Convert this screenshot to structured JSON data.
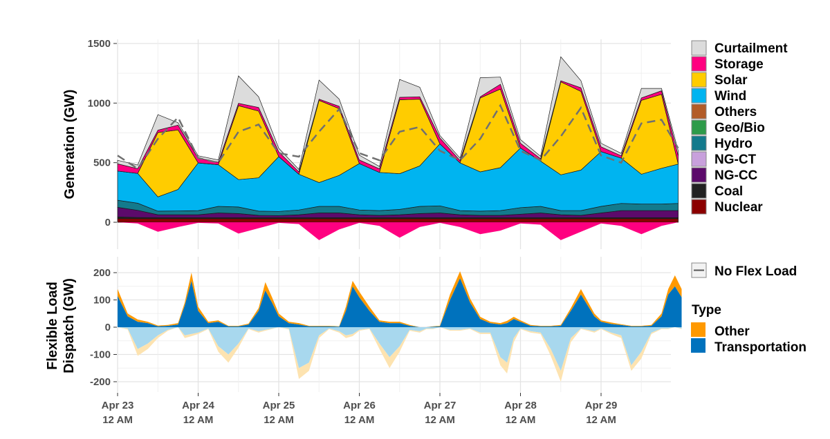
{
  "chart_data": [
    {
      "type": "area",
      "panel": "generation",
      "ylabel": "Generation (GW)",
      "ylim": [
        -150,
        1500
      ],
      "yticks": [
        "0",
        "500",
        "1000",
        "1500"
      ],
      "ytick_values": [
        0,
        500,
        1000,
        1500
      ],
      "x_unit": "hours since Apr 23 12 AM",
      "x": [
        0,
        6,
        12,
        18,
        24,
        30,
        36,
        42,
        48,
        54,
        60,
        66,
        72,
        78,
        84,
        90,
        96,
        102,
        108,
        114,
        120,
        126,
        132,
        138,
        144,
        150,
        156,
        162,
        167
      ],
      "series": [
        {
          "name": "Nuclear",
          "color": "#8b0000",
          "values": [
            30,
            30,
            30,
            30,
            30,
            30,
            30,
            30,
            30,
            30,
            30,
            30,
            30,
            30,
            30,
            30,
            30,
            30,
            30,
            30,
            30,
            30,
            30,
            30,
            30,
            30,
            30,
            30,
            30
          ]
        },
        {
          "name": "Coal",
          "color": "#222222",
          "values": [
            15,
            10,
            8,
            8,
            8,
            8,
            8,
            8,
            8,
            8,
            8,
            8,
            8,
            8,
            8,
            8,
            8,
            8,
            8,
            8,
            8,
            8,
            8,
            8,
            8,
            8,
            8,
            8,
            8
          ]
        },
        {
          "name": "NG-CC",
          "color": "#5c0a6b",
          "values": [
            80,
            60,
            25,
            25,
            25,
            40,
            35,
            20,
            18,
            25,
            40,
            40,
            25,
            20,
            25,
            35,
            40,
            25,
            20,
            20,
            30,
            40,
            25,
            20,
            40,
            60,
            60,
            60,
            60
          ]
        },
        {
          "name": "NG-CT",
          "color": "#c8a0dc",
          "values": [
            0,
            0,
            0,
            0,
            0,
            0,
            0,
            0,
            0,
            0,
            0,
            0,
            0,
            0,
            0,
            0,
            0,
            0,
            0,
            0,
            0,
            0,
            0,
            0,
            0,
            0,
            0,
            0,
            0
          ]
        },
        {
          "name": "Hydro",
          "color": "#137a8c",
          "values": [
            60,
            60,
            30,
            32,
            35,
            55,
            55,
            35,
            35,
            40,
            55,
            55,
            40,
            40,
            45,
            60,
            60,
            35,
            35,
            40,
            55,
            55,
            35,
            40,
            55,
            60,
            55,
            55,
            60
          ]
        },
        {
          "name": "Geo/Bio",
          "color": "#2e9b4a",
          "values": [
            0,
            0,
            0,
            0,
            0,
            0,
            0,
            0,
            0,
            0,
            0,
            0,
            0,
            0,
            0,
            0,
            0,
            0,
            0,
            0,
            0,
            0,
            0,
            0,
            0,
            0,
            0,
            0,
            0
          ]
        },
        {
          "name": "Others",
          "color": "#b35c28",
          "values": [
            0,
            0,
            0,
            0,
            0,
            0,
            0,
            0,
            0,
            0,
            0,
            0,
            0,
            0,
            0,
            0,
            0,
            0,
            0,
            0,
            0,
            0,
            0,
            0,
            0,
            0,
            0,
            0,
            0
          ]
        },
        {
          "name": "Wind",
          "color": "#00b4f0",
          "values": [
            245,
            250,
            120,
            180,
            400,
            350,
            230,
            280,
            460,
            300,
            200,
            260,
            390,
            320,
            300,
            340,
            520,
            400,
            330,
            360,
            500,
            380,
            300,
            340,
            460,
            380,
            250,
            300,
            330
          ]
        },
        {
          "name": "Solar",
          "color": "#ffcc00",
          "values": [
            0,
            0,
            540,
            500,
            0,
            0,
            620,
            560,
            0,
            0,
            690,
            560,
            0,
            0,
            620,
            560,
            0,
            0,
            620,
            660,
            0,
            0,
            780,
            660,
            0,
            0,
            620,
            620,
            0
          ]
        },
        {
          "name": "Storage",
          "color": "#ff0080",
          "values": [
            60,
            40,
            20,
            40,
            40,
            20,
            20,
            30,
            40,
            20,
            10,
            20,
            30,
            30,
            20,
            20,
            50,
            20,
            10,
            40,
            40,
            20,
            10,
            30,
            40,
            20,
            20,
            30,
            70
          ]
        },
        {
          "name": "Curtailment",
          "color": "#dcdcdc",
          "values": [
            30,
            30,
            130,
            20,
            20,
            20,
            230,
            90,
            30,
            20,
            160,
            60,
            40,
            20,
            150,
            80,
            20,
            20,
            160,
            60,
            30,
            20,
            200,
            60,
            30,
            20,
            80,
            20,
            40
          ]
        }
      ],
      "storage_charging": {
        "name": "Storage",
        "values": [
          0,
          -10,
          -80,
          -40,
          -5,
          -10,
          -95,
          -50,
          -5,
          -15,
          -150,
          -60,
          -5,
          -30,
          -130,
          -40,
          -5,
          -40,
          -100,
          -70,
          -10,
          -20,
          -150,
          -80,
          -10,
          -30,
          -100,
          -30,
          0
        ]
      },
      "no_flex_load": {
        "name": "No Flex Load",
        "values": [
          560,
          450,
          700,
          880,
          540,
          500,
          760,
          820,
          580,
          550,
          760,
          950,
          580,
          520,
          760,
          800,
          600,
          520,
          700,
          980,
          600,
          520,
          720,
          960,
          560,
          500,
          830,
          860,
          620
        ]
      }
    },
    {
      "type": "area",
      "panel": "flexible-load",
      "ylabel_lines": [
        "Flexible Load",
        "Dispatch (GW)"
      ],
      "ylim": [
        -250,
        250
      ],
      "yticks": [
        "-200",
        "-100",
        "0",
        "100",
        "200"
      ],
      "ytick_values": [
        -200,
        -100,
        0,
        100,
        200
      ],
      "xticks": [
        {
          "line1": "Apr 23",
          "line2": "12 AM",
          "hour": 0
        },
        {
          "line1": "Apr 24",
          "line2": "12 AM",
          "hour": 24
        },
        {
          "line1": "Apr 25",
          "line2": "12 AM",
          "hour": 48
        },
        {
          "line1": "Apr 26",
          "line2": "12 AM",
          "hour": 72
        },
        {
          "line1": "Apr 27",
          "line2": "12 AM",
          "hour": 96
        },
        {
          "line1": "Apr 28",
          "line2": "12 AM",
          "hour": 120
        },
        {
          "line1": "Apr 29",
          "line2": "12 AM",
          "hour": 144
        }
      ],
      "x": [
        0,
        3,
        6,
        9,
        12,
        15,
        18,
        20,
        22,
        24,
        27,
        30,
        33,
        36,
        39,
        42,
        44,
        46,
        48,
        51,
        54,
        57,
        60,
        63,
        66,
        68,
        70,
        72,
        75,
        78,
        81,
        84,
        87,
        90,
        92,
        94,
        96,
        99,
        102,
        105,
        108,
        111,
        114,
        116,
        118,
        120,
        123,
        126,
        129,
        132,
        135,
        138,
        140,
        142,
        144,
        147,
        150,
        153,
        156,
        159,
        162,
        164,
        166,
        168
      ],
      "series": [
        {
          "name": "Transportation",
          "color": "#0072bd",
          "values": [
            115,
            40,
            20,
            15,
            3,
            5,
            10,
            80,
            170,
            60,
            15,
            20,
            3,
            3,
            10,
            60,
            135,
            90,
            40,
            15,
            10,
            3,
            3,
            3,
            2,
            60,
            150,
            110,
            60,
            20,
            15,
            15,
            5,
            0,
            0,
            2,
            3,
            100,
            180,
            90,
            30,
            15,
            10,
            15,
            30,
            20,
            5,
            3,
            3,
            5,
            60,
            120,
            80,
            40,
            20,
            12,
            8,
            3,
            3,
            5,
            40,
            120,
            150,
            110
          ]
        },
        {
          "name": "Other",
          "color": "#ff9900",
          "values": [
            25,
            10,
            8,
            5,
            3,
            3,
            5,
            10,
            30,
            15,
            5,
            5,
            2,
            2,
            3,
            10,
            30,
            20,
            10,
            5,
            5,
            2,
            2,
            2,
            1,
            15,
            20,
            20,
            15,
            5,
            5,
            5,
            3,
            0,
            0,
            1,
            2,
            20,
            25,
            15,
            8,
            5,
            5,
            8,
            8,
            5,
            3,
            2,
            2,
            3,
            10,
            20,
            15,
            10,
            5,
            5,
            3,
            2,
            2,
            3,
            10,
            20,
            40,
            30
          ]
        }
      ],
      "negative_series": [
        {
          "name": "Transportation",
          "color": "#a8d8ee",
          "values": [
            0,
            -5,
            -80,
            -60,
            -30,
            -10,
            0,
            -30,
            -25,
            -20,
            -5,
            -70,
            -100,
            -60,
            -5,
            -15,
            -10,
            -5,
            0,
            -5,
            -150,
            -130,
            -30,
            -5,
            -15,
            -30,
            -25,
            -10,
            -5,
            -60,
            -110,
            -70,
            -10,
            -15,
            -5,
            -5,
            0,
            -10,
            -10,
            -5,
            -20,
            -20,
            -110,
            -130,
            -40,
            -5,
            -15,
            -20,
            -80,
            -160,
            -40,
            -5,
            -10,
            -15,
            -5,
            -20,
            -30,
            -140,
            -90,
            -20,
            -5,
            -5,
            0,
            -5
          ]
        },
        {
          "name": "Other",
          "color": "#fde3b0",
          "values": [
            0,
            -3,
            -25,
            -20,
            -10,
            -3,
            0,
            -10,
            -8,
            -5,
            -2,
            -20,
            -30,
            -15,
            -2,
            -5,
            -3,
            -2,
            0,
            -3,
            -40,
            -30,
            -10,
            -2,
            -5,
            -10,
            -8,
            -3,
            -2,
            -20,
            -40,
            -20,
            -3,
            -5,
            -2,
            -2,
            0,
            -3,
            -3,
            -2,
            -5,
            -5,
            -30,
            -40,
            -15,
            -2,
            -5,
            -5,
            -25,
            -40,
            -15,
            -2,
            -3,
            -5,
            -2,
            -5,
            -10,
            -20,
            -25,
            -5,
            -2,
            -2,
            0,
            -2
          ]
        }
      ]
    }
  ],
  "legend": {
    "generation_items": [
      {
        "label": "Curtailment",
        "color": "#dcdcdc"
      },
      {
        "label": "Storage",
        "color": "#ff0080"
      },
      {
        "label": "Solar",
        "color": "#ffcc00"
      },
      {
        "label": "Wind",
        "color": "#00b4f0"
      },
      {
        "label": "Others",
        "color": "#b35c28"
      },
      {
        "label": "Geo/Bio",
        "color": "#2e9b4a"
      },
      {
        "label": "Hydro",
        "color": "#137a8c"
      },
      {
        "label": "NG-CT",
        "color": "#c8a0dc"
      },
      {
        "label": "NG-CC",
        "color": "#5c0a6b"
      },
      {
        "label": "Coal",
        "color": "#222222"
      },
      {
        "label": "Nuclear",
        "color": "#8b0000"
      }
    ],
    "line_item": "No Flex Load",
    "type_title": "Type",
    "type_items": [
      {
        "label": "Other",
        "color": "#ff9900"
      },
      {
        "label": "Transportation",
        "color": "#0072bd"
      }
    ]
  }
}
